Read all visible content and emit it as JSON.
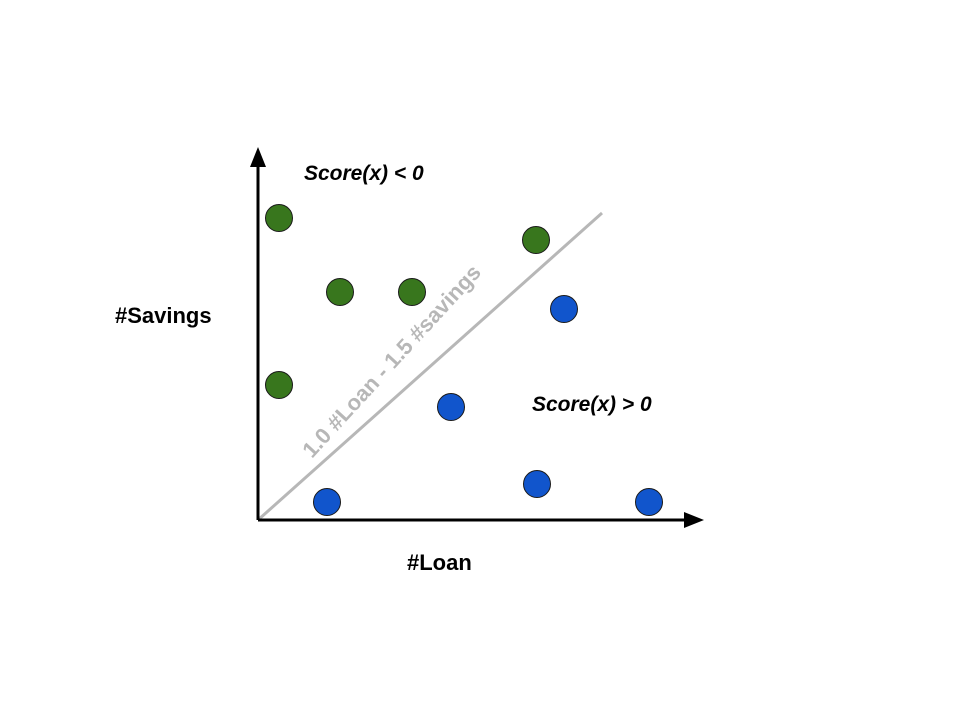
{
  "axes": {
    "x_label": "#Loan",
    "y_label": "#Savings"
  },
  "regions": {
    "negative_label": "Score(x) < 0",
    "positive_label": "Score(x) > 0"
  },
  "boundary": {
    "label": "1.0 #Loan - 1.5 #savings",
    "color": "#b7b7b7"
  },
  "colors": {
    "negative_class": "#38761d",
    "positive_class": "#1155cc",
    "axis": "#000000"
  }
}
